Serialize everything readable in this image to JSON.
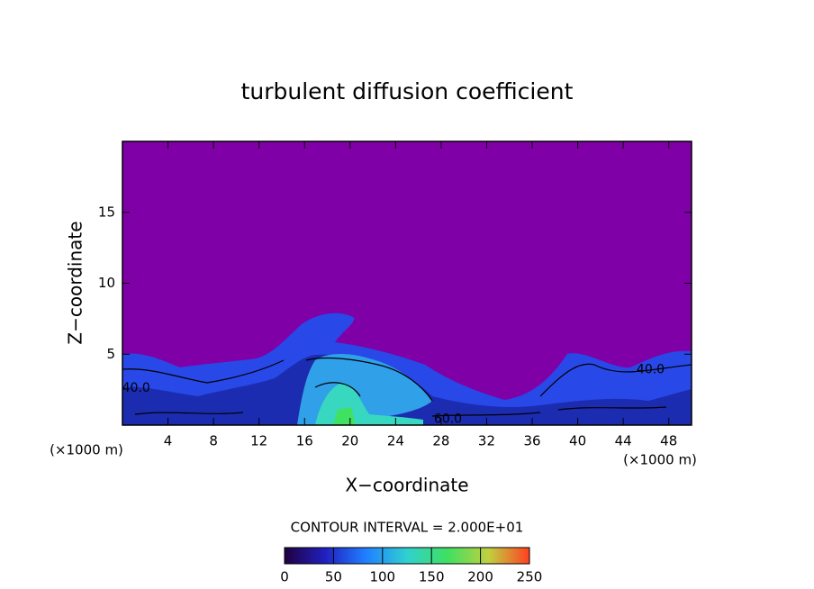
{
  "chart_data": {
    "type": "contour",
    "title": "turbulent diffusion coefficient",
    "x_label": "X−coordinate",
    "y_label": "Z−coordinate",
    "x_unit": "(×1000 m)",
    "x_unit_right": "(×1000 m)",
    "xlim": [
      0,
      50
    ],
    "xticks": [
      4,
      8,
      12,
      16,
      20,
      24,
      28,
      32,
      36,
      40,
      44,
      48
    ],
    "ylim": [
      0,
      20
    ],
    "yticks": [
      5,
      10,
      15
    ],
    "contour_interval": "CONTOUR INTERVAL = 2.000E+01",
    "contour_labels": [
      {
        "text": "40.0",
        "x": 1.2,
        "y": 2.6
      },
      {
        "text": "40.0",
        "x": 46.4,
        "y": 3.9
      },
      {
        "text": "60.0",
        "x": 28.6,
        "y": 0.4
      }
    ],
    "colorbar": {
      "lim": [
        0,
        250
      ],
      "ticks": [
        0,
        50,
        100,
        150,
        200,
        250
      ],
      "colors": [
        "#200040",
        "#2020c0",
        "#2080ff",
        "#30d0d0",
        "#40e060",
        "#c0d040",
        "#ff4020"
      ]
    }
  }
}
